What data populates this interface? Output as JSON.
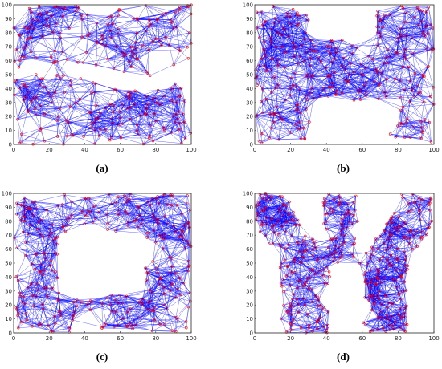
{
  "figure": {
    "colors": {
      "edge": "#0000ff",
      "node": "#ff0000",
      "axis": "#262626"
    },
    "axis_ticks": [
      "0",
      "20",
      "40",
      "60",
      "80",
      "100"
    ],
    "y_ticks": [
      "0",
      "10",
      "20",
      "30",
      "40",
      "50",
      "60",
      "70",
      "80",
      "90",
      "100"
    ],
    "panels": [
      {
        "id": "a",
        "caption": "(a)",
        "shape": "two horizontal bands (uniform square split by a sinuous void)"
      },
      {
        "id": "b",
        "caption": "(b)",
        "shape": "H-shaped region"
      },
      {
        "id": "c",
        "caption": "(c)",
        "shape": "square with a central rectangular hole"
      },
      {
        "id": "d",
        "caption": "(d)",
        "shape": "W-shaped region"
      }
    ],
    "xlim": [
      0,
      100
    ],
    "ylim": [
      0,
      100
    ]
  }
}
